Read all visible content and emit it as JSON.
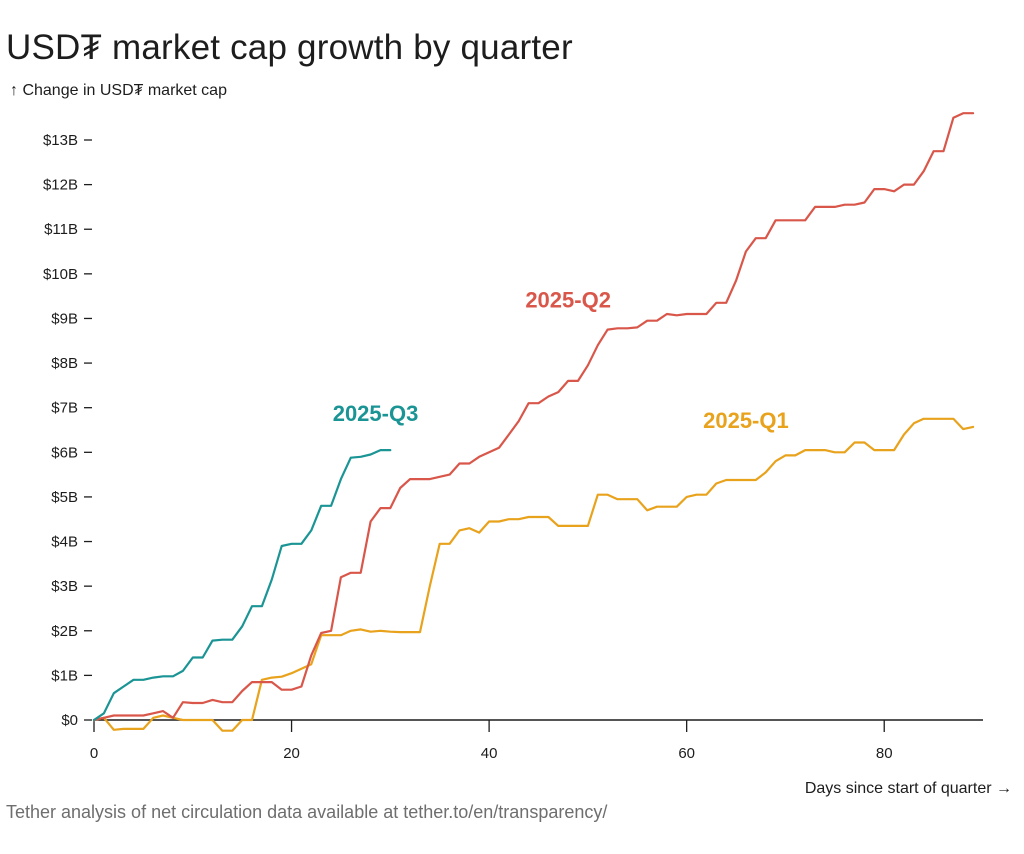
{
  "header": {
    "title": "USD₮ market cap growth by quarter",
    "y_axis_label": "↑ Change in USD₮ market cap",
    "x_axis_label": "Days since start of quarter →"
  },
  "footer": {
    "source": "Tether analysis of net circulation data available at tether.to/en/transparency/"
  },
  "chart_data": {
    "type": "line",
    "title": "USD₮ market cap growth by quarter",
    "xlabel": "Days since start of quarter →",
    "ylabel": "↑ Change in USD₮ market cap",
    "xlim": [
      0,
      90
    ],
    "ylim": [
      -0.3,
      13.9
    ],
    "x_ticks": [
      0,
      20,
      40,
      60,
      80
    ],
    "x_tick_labels": [
      "0",
      "20",
      "40",
      "60",
      "80"
    ],
    "y_ticks": [
      0,
      1,
      2,
      3,
      4,
      5,
      6,
      7,
      8,
      9,
      10,
      11,
      12,
      13
    ],
    "y_tick_labels": [
      "$0",
      "$1B",
      "$2B",
      "$3B",
      "$4B",
      "$5B",
      "$6B",
      "$7B",
      "$8B",
      "$9B",
      "$10B",
      "$11B",
      "$12B",
      "$13B"
    ],
    "grid": false,
    "legend": "inline labels",
    "series": [
      {
        "name": "2025-Q1",
        "color": "#e8a21c",
        "label_at": [
          66,
          6.55
        ],
        "points": [
          [
            0,
            0
          ],
          [
            1,
            0.05
          ],
          [
            2,
            -0.22
          ],
          [
            3,
            -0.2
          ],
          [
            4,
            -0.2
          ],
          [
            5,
            -0.2
          ],
          [
            6,
            0.05
          ],
          [
            7,
            0.1
          ],
          [
            8,
            0.05
          ],
          [
            9,
            0
          ],
          [
            10,
            0
          ],
          [
            11,
            0
          ],
          [
            12,
            0
          ],
          [
            13,
            -0.24
          ],
          [
            14,
            -0.24
          ],
          [
            15,
            0
          ],
          [
            16,
            0
          ],
          [
            17,
            0.9
          ],
          [
            18,
            0.95
          ],
          [
            19,
            0.97
          ],
          [
            20,
            1.05
          ],
          [
            21,
            1.15
          ],
          [
            22,
            1.25
          ],
          [
            23,
            1.9
          ],
          [
            24,
            1.9
          ],
          [
            25,
            1.9
          ],
          [
            26,
            2.0
          ],
          [
            27,
            2.03
          ],
          [
            28,
            1.98
          ],
          [
            29,
            2.0
          ],
          [
            30,
            1.98
          ],
          [
            31,
            1.97
          ],
          [
            32,
            1.97
          ],
          [
            33,
            1.97
          ],
          [
            34,
            3.0
          ],
          [
            35,
            3.95
          ],
          [
            36,
            3.95
          ],
          [
            37,
            4.25
          ],
          [
            38,
            4.3
          ],
          [
            39,
            4.2
          ],
          [
            40,
            4.45
          ],
          [
            41,
            4.45
          ],
          [
            42,
            4.5
          ],
          [
            43,
            4.5
          ],
          [
            44,
            4.55
          ],
          [
            45,
            4.55
          ],
          [
            46,
            4.55
          ],
          [
            47,
            4.35
          ],
          [
            48,
            4.35
          ],
          [
            49,
            4.35
          ],
          [
            50,
            4.35
          ],
          [
            51,
            5.05
          ],
          [
            52,
            5.05
          ],
          [
            53,
            4.95
          ],
          [
            54,
            4.95
          ],
          [
            55,
            4.95
          ],
          [
            56,
            4.7
          ],
          [
            57,
            4.78
          ],
          [
            58,
            4.78
          ],
          [
            59,
            4.78
          ],
          [
            60,
            5.0
          ],
          [
            61,
            5.05
          ],
          [
            62,
            5.05
          ],
          [
            63,
            5.3
          ],
          [
            64,
            5.38
          ],
          [
            65,
            5.38
          ],
          [
            66,
            5.38
          ],
          [
            67,
            5.38
          ],
          [
            68,
            5.55
          ],
          [
            69,
            5.8
          ],
          [
            70,
            5.93
          ],
          [
            71,
            5.93
          ],
          [
            72,
            6.05
          ],
          [
            73,
            6.05
          ],
          [
            74,
            6.05
          ],
          [
            75,
            6.0
          ],
          [
            76,
            6.0
          ],
          [
            77,
            6.22
          ],
          [
            78,
            6.22
          ],
          [
            79,
            6.05
          ],
          [
            80,
            6.05
          ],
          [
            81,
            6.05
          ],
          [
            82,
            6.4
          ],
          [
            83,
            6.65
          ],
          [
            84,
            6.75
          ],
          [
            85,
            6.75
          ],
          [
            86,
            6.75
          ],
          [
            87,
            6.75
          ],
          [
            88,
            6.52
          ],
          [
            89,
            6.57
          ]
        ]
      },
      {
        "name": "2025-Q2",
        "color": "#d9574a",
        "label_at": [
          48,
          9.25
        ],
        "points": [
          [
            0,
            0
          ],
          [
            1,
            0.05
          ],
          [
            2,
            0.1
          ],
          [
            3,
            0.1
          ],
          [
            4,
            0.1
          ],
          [
            5,
            0.1
          ],
          [
            6,
            0.15
          ],
          [
            7,
            0.2
          ],
          [
            8,
            0.05
          ],
          [
            9,
            0.4
          ],
          [
            10,
            0.38
          ],
          [
            11,
            0.38
          ],
          [
            12,
            0.45
          ],
          [
            13,
            0.4
          ],
          [
            14,
            0.4
          ],
          [
            15,
            0.65
          ],
          [
            16,
            0.85
          ],
          [
            17,
            0.85
          ],
          [
            18,
            0.85
          ],
          [
            19,
            0.68
          ],
          [
            20,
            0.68
          ],
          [
            21,
            0.75
          ],
          [
            22,
            1.45
          ],
          [
            23,
            1.95
          ],
          [
            24,
            2.0
          ],
          [
            25,
            3.2
          ],
          [
            26,
            3.3
          ],
          [
            27,
            3.3
          ],
          [
            28,
            4.45
          ],
          [
            29,
            4.75
          ],
          [
            30,
            4.75
          ],
          [
            31,
            5.2
          ],
          [
            32,
            5.4
          ],
          [
            33,
            5.4
          ],
          [
            34,
            5.4
          ],
          [
            35,
            5.45
          ],
          [
            36,
            5.5
          ],
          [
            37,
            5.75
          ],
          [
            38,
            5.75
          ],
          [
            39,
            5.9
          ],
          [
            40,
            6.0
          ],
          [
            41,
            6.1
          ],
          [
            42,
            6.4
          ],
          [
            43,
            6.7
          ],
          [
            44,
            7.1
          ],
          [
            45,
            7.1
          ],
          [
            46,
            7.25
          ],
          [
            47,
            7.35
          ],
          [
            48,
            7.6
          ],
          [
            49,
            7.6
          ],
          [
            50,
            7.95
          ],
          [
            51,
            8.4
          ],
          [
            52,
            8.75
          ],
          [
            53,
            8.78
          ],
          [
            54,
            8.78
          ],
          [
            55,
            8.8
          ],
          [
            56,
            8.95
          ],
          [
            57,
            8.95
          ],
          [
            58,
            9.1
          ],
          [
            59,
            9.07
          ],
          [
            60,
            9.1
          ],
          [
            61,
            9.1
          ],
          [
            62,
            9.1
          ],
          [
            63,
            9.35
          ],
          [
            64,
            9.35
          ],
          [
            65,
            9.85
          ],
          [
            66,
            10.5
          ],
          [
            67,
            10.8
          ],
          [
            68,
            10.8
          ],
          [
            69,
            11.2
          ],
          [
            70,
            11.2
          ],
          [
            71,
            11.2
          ],
          [
            72,
            11.2
          ],
          [
            73,
            11.5
          ],
          [
            74,
            11.5
          ],
          [
            75,
            11.5
          ],
          [
            76,
            11.55
          ],
          [
            77,
            11.55
          ],
          [
            78,
            11.6
          ],
          [
            79,
            11.9
          ],
          [
            80,
            11.9
          ],
          [
            81,
            11.85
          ],
          [
            82,
            12.0
          ],
          [
            83,
            12.0
          ],
          [
            84,
            12.3
          ],
          [
            85,
            12.75
          ],
          [
            86,
            12.75
          ],
          [
            87,
            13.5
          ],
          [
            88,
            13.6
          ],
          [
            89,
            13.6
          ]
        ]
      },
      {
        "name": "2025-Q3",
        "color": "#1a9494",
        "label_at": [
          28.5,
          6.7
        ],
        "points": [
          [
            0,
            0
          ],
          [
            1,
            0.15
          ],
          [
            2,
            0.6
          ],
          [
            3,
            0.75
          ],
          [
            4,
            0.9
          ],
          [
            5,
            0.9
          ],
          [
            6,
            0.95
          ],
          [
            7,
            0.98
          ],
          [
            8,
            0.98
          ],
          [
            9,
            1.1
          ],
          [
            10,
            1.4
          ],
          [
            11,
            1.4
          ],
          [
            12,
            1.78
          ],
          [
            13,
            1.8
          ],
          [
            14,
            1.8
          ],
          [
            15,
            2.1
          ],
          [
            16,
            2.55
          ],
          [
            17,
            2.55
          ],
          [
            18,
            3.15
          ],
          [
            19,
            3.9
          ],
          [
            20,
            3.95
          ],
          [
            21,
            3.95
          ],
          [
            22,
            4.25
          ],
          [
            23,
            4.8
          ],
          [
            24,
            4.8
          ],
          [
            25,
            5.4
          ],
          [
            26,
            5.88
          ],
          [
            27,
            5.9
          ],
          [
            28,
            5.95
          ],
          [
            29,
            6.05
          ],
          [
            30,
            6.05
          ]
        ]
      }
    ]
  }
}
